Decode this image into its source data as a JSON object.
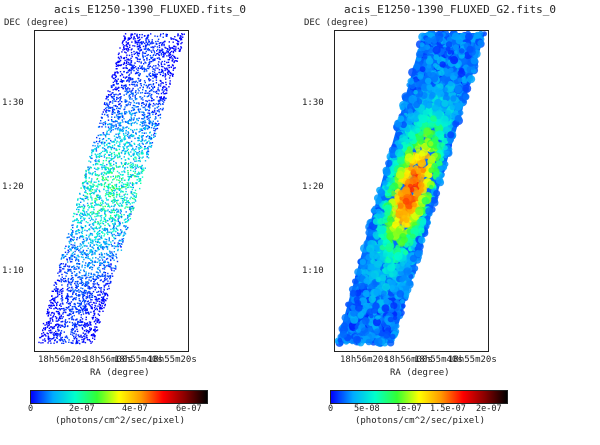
{
  "panels": [
    {
      "title": "acis_E1250-1390_FLUXED.fits_0",
      "y_axis_label": "DEC (degree)",
      "x_axis_label": "RA (degree)",
      "y_ticks": [
        "1:30",
        "1:20",
        "1:10"
      ],
      "x_ticks": [
        "18h56m20s",
        "18h56m00s",
        "18h55m40s",
        "18h55m20s"
      ],
      "colorbar": {
        "ticks": [
          "0",
          "2e-07",
          "4e-07",
          "6e-07"
        ],
        "unit_label": "(photons/cm^2/sec/pixel)"
      },
      "image_style": "scatter-noisy"
    },
    {
      "title": "acis_E1250-1390_FLUXED_G2.fits_0",
      "y_axis_label": "DEC (degree)",
      "x_axis_label": "RA (degree)",
      "y_ticks": [
        "1:30",
        "1:20",
        "1:10"
      ],
      "x_ticks": [
        "18h56m20s",
        "18h56m00s",
        "18h55m40s",
        "18h55m20s"
      ],
      "colorbar": {
        "ticks": [
          "0",
          "5e-08",
          "1e-07",
          "1.5e-07",
          "2e-07"
        ],
        "unit_label": "(photons/cm^2/sec/pixel)"
      },
      "image_style": "smoothed"
    }
  ],
  "colormap": [
    "#0000ff",
    "#00aaff",
    "#00ffcc",
    "#33ff33",
    "#ffff00",
    "#ff9900",
    "#ff0000",
    "#880000",
    "#000000"
  ]
}
